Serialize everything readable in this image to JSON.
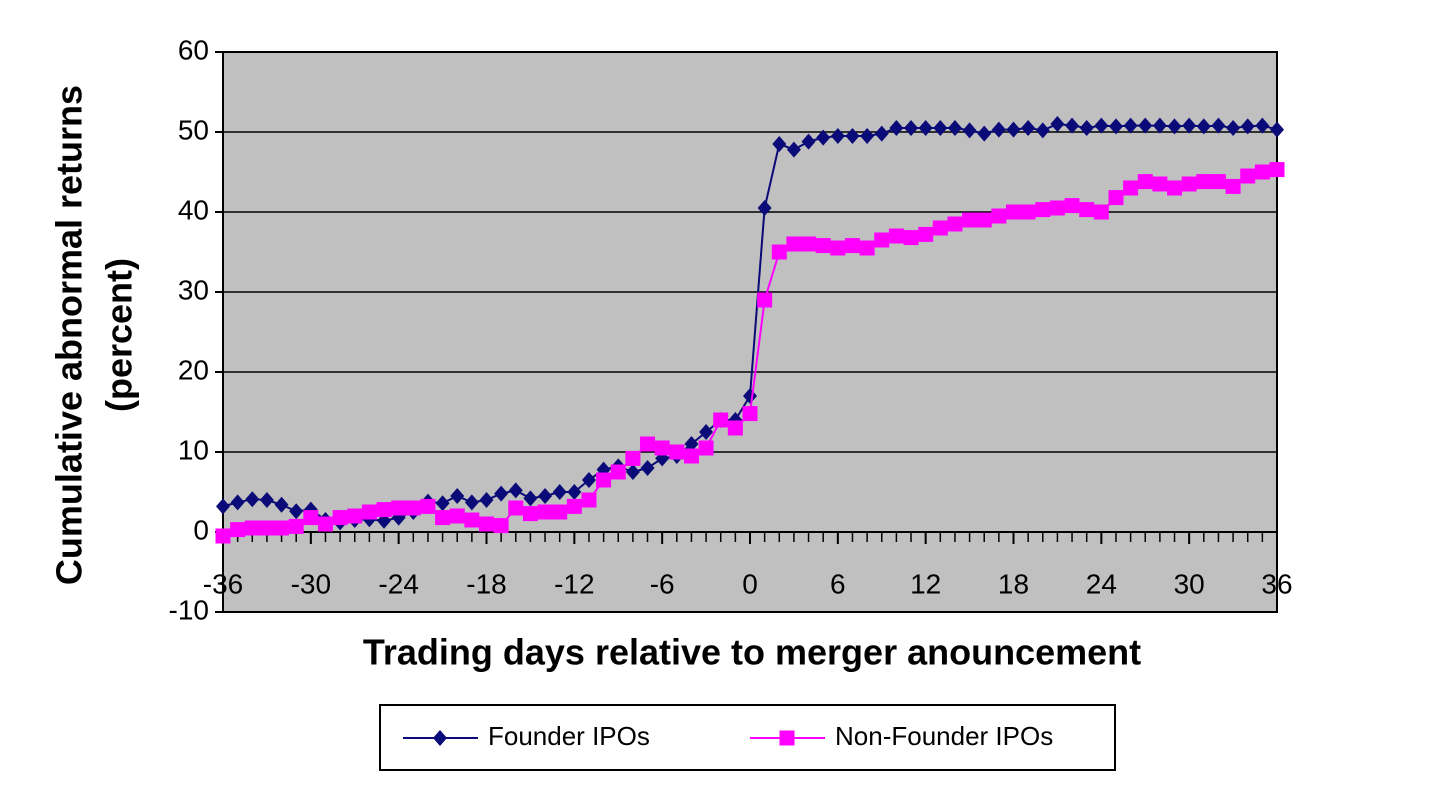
{
  "chart_data": {
    "type": "line",
    "y_label": [
      "Cumulative abnormal returns",
      "(percent)"
    ],
    "x_label": "Trading days relative to merger anouncement",
    "x": [
      -36,
      -35,
      -34,
      -33,
      -32,
      -31,
      -30,
      -29,
      -28,
      -27,
      -26,
      -25,
      -24,
      -23,
      -22,
      -21,
      -20,
      -19,
      -18,
      -17,
      -16,
      -15,
      -14,
      -13,
      -12,
      -11,
      -10,
      -9,
      -8,
      -7,
      -6,
      -5,
      -4,
      -3,
      -2,
      -1,
      0,
      1,
      2,
      3,
      4,
      5,
      6,
      7,
      8,
      9,
      10,
      11,
      12,
      13,
      14,
      15,
      16,
      17,
      18,
      19,
      20,
      21,
      22,
      23,
      24,
      25,
      26,
      27,
      28,
      29,
      30,
      31,
      32,
      33,
      34,
      35,
      36
    ],
    "series": [
      {
        "name": "Founder IPOs",
        "color": "#0a0a78",
        "marker": "diamond",
        "values": [
          3.2,
          3.7,
          4.1,
          4.0,
          3.4,
          2.6,
          2.8,
          1.5,
          1.2,
          1.5,
          1.6,
          1.4,
          1.8,
          2.5,
          3.8,
          3.6,
          4.5,
          3.7,
          4.0,
          4.8,
          5.2,
          4.2,
          4.5,
          5.0,
          5.0,
          6.5,
          7.8,
          8.2,
          7.5,
          8.0,
          9.2,
          9.5,
          11.0,
          12.5,
          14.0,
          14.0,
          17.0,
          40.5,
          48.5,
          47.8,
          48.8,
          49.3,
          49.5,
          49.5,
          49.5,
          49.8,
          50.5,
          50.5,
          50.5,
          50.5,
          50.5,
          50.2,
          49.8,
          50.3,
          50.3,
          50.5,
          50.2,
          51.0,
          50.8,
          50.5,
          50.8,
          50.7,
          50.8,
          50.8,
          50.8,
          50.7,
          50.8,
          50.7,
          50.8,
          50.5,
          50.7,
          50.8,
          50.3
        ]
      },
      {
        "name": "Non-Founder IPOs",
        "color": "#ff00ff",
        "marker": "square",
        "values": [
          -0.5,
          0.3,
          0.5,
          0.5,
          0.5,
          0.7,
          1.8,
          1.0,
          1.8,
          2.0,
          2.5,
          2.8,
          3.0,
          3.0,
          3.2,
          1.8,
          2.0,
          1.5,
          1.0,
          0.8,
          3.0,
          2.3,
          2.5,
          2.5,
          3.2,
          4.0,
          6.5,
          7.5,
          9.2,
          11.0,
          10.5,
          10.0,
          9.5,
          10.5,
          14.0,
          13.0,
          14.8,
          29.0,
          35.0,
          36.0,
          36.0,
          35.8,
          35.5,
          35.8,
          35.5,
          36.5,
          37.0,
          36.8,
          37.2,
          38.0,
          38.5,
          39.0,
          39.0,
          39.5,
          40.0,
          40.0,
          40.3,
          40.5,
          40.8,
          40.3,
          40.0,
          41.8,
          43.0,
          43.8,
          43.5,
          43.0,
          43.5,
          43.8,
          43.8,
          43.2,
          44.5,
          45.0,
          45.3
        ]
      }
    ],
    "xlim": [
      -36,
      36
    ],
    "xticks": [
      -36,
      -30,
      -24,
      -18,
      -12,
      -6,
      0,
      6,
      12,
      18,
      24,
      30,
      36
    ],
    "ylim": [
      -10,
      60
    ],
    "yticks": [
      -10,
      0,
      10,
      20,
      30,
      40,
      50,
      60
    ],
    "grid": true,
    "legend": "bottom"
  }
}
